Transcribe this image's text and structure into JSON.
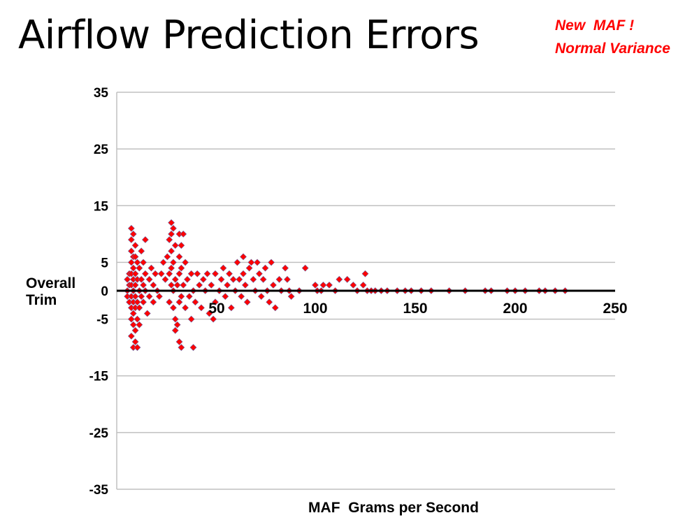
{
  "slide": {
    "title": "Airflow Prediction Errors",
    "annotation": [
      "New  MAF !",
      "Normal Variance"
    ]
  },
  "colors": {
    "marker": "#ff0000",
    "marker_edge": "#6a6aa8",
    "grid": "#c0c0c0",
    "zero_line": "#000000",
    "annotation": "#ff0000"
  },
  "chart_data": {
    "type": "scatter",
    "title": "Airflow Prediction Errors",
    "xlabel": "MAF  Grams per Second",
    "ylabel": "Overall Trim",
    "xlim": [
      0,
      250
    ],
    "ylim": [
      -35,
      35
    ],
    "xticks": [
      50,
      100,
      150,
      200,
      250
    ],
    "xtick_labels": [
      "50",
      "100",
      "150",
      "200",
      "250"
    ],
    "yticks": [
      35,
      25,
      15,
      5,
      0,
      -5,
      -15,
      -25,
      -35
    ],
    "ytick_labels": [
      "35",
      "25",
      "15",
      "5",
      "0",
      "-5",
      "-15",
      "-25",
      "-35"
    ],
    "grid": true,
    "marker": "diamond",
    "series": [
      {
        "name": "Overall Trim",
        "points": [
          [
            6,
            2
          ],
          [
            6,
            0
          ],
          [
            6,
            -1
          ],
          [
            7,
            3
          ],
          [
            7,
            1
          ],
          [
            7,
            -2
          ],
          [
            8,
            11
          ],
          [
            8,
            9
          ],
          [
            8,
            7
          ],
          [
            8,
            5
          ],
          [
            8,
            3
          ],
          [
            8,
            1
          ],
          [
            8,
            -1
          ],
          [
            8,
            -3
          ],
          [
            8,
            -5
          ],
          [
            8,
            -8
          ],
          [
            9,
            10
          ],
          [
            9,
            6
          ],
          [
            9,
            4
          ],
          [
            9,
            2
          ],
          [
            9,
            0
          ],
          [
            9,
            -2
          ],
          [
            9,
            -4
          ],
          [
            9,
            -6
          ],
          [
            9,
            -10
          ],
          [
            10,
            8
          ],
          [
            10,
            6
          ],
          [
            10,
            3
          ],
          [
            10,
            1
          ],
          [
            10,
            -1
          ],
          [
            10,
            -3
          ],
          [
            10,
            -7
          ],
          [
            10,
            -9
          ],
          [
            11,
            5
          ],
          [
            11,
            2
          ],
          [
            11,
            -2
          ],
          [
            11,
            -5
          ],
          [
            11,
            -10
          ],
          [
            12,
            4
          ],
          [
            12,
            0
          ],
          [
            12,
            -3
          ],
          [
            12,
            -6
          ],
          [
            13,
            7
          ],
          [
            13,
            2
          ],
          [
            13,
            -1
          ],
          [
            14,
            5
          ],
          [
            14,
            1
          ],
          [
            14,
            -2
          ],
          [
            15,
            9
          ],
          [
            15,
            3
          ],
          [
            15,
            0
          ],
          [
            16,
            -4
          ],
          [
            17,
            2
          ],
          [
            17,
            -1
          ],
          [
            18,
            4
          ],
          [
            19,
            1
          ],
          [
            19,
            -2
          ],
          [
            20,
            3
          ],
          [
            21,
            0
          ],
          [
            22,
            -1
          ],
          [
            23,
            3
          ],
          [
            24,
            5
          ],
          [
            25,
            2
          ],
          [
            26,
            6
          ],
          [
            27,
            9
          ],
          [
            27,
            3
          ],
          [
            27,
            -2
          ],
          [
            28,
            12
          ],
          [
            28,
            10
          ],
          [
            28,
            7
          ],
          [
            28,
            4
          ],
          [
            28,
            1
          ],
          [
            29,
            11
          ],
          [
            29,
            5
          ],
          [
            29,
            0
          ],
          [
            29,
            -3
          ],
          [
            30,
            8
          ],
          [
            30,
            2
          ],
          [
            30,
            -5
          ],
          [
            30,
            -7
          ],
          [
            31,
            -6
          ],
          [
            31,
            1
          ],
          [
            32,
            10
          ],
          [
            32,
            6
          ],
          [
            32,
            3
          ],
          [
            32,
            -2
          ],
          [
            32,
            -9
          ],
          [
            33,
            8
          ],
          [
            33,
            4
          ],
          [
            33,
            -1
          ],
          [
            33,
            -10
          ],
          [
            34,
            10
          ],
          [
            34,
            1
          ],
          [
            35,
            5
          ],
          [
            35,
            -3
          ],
          [
            36,
            2
          ],
          [
            37,
            -1
          ],
          [
            38,
            3
          ],
          [
            38,
            -5
          ],
          [
            39,
            0
          ],
          [
            39,
            -10
          ],
          [
            40,
            -2
          ],
          [
            41,
            3
          ],
          [
            42,
            1
          ],
          [
            43,
            -3
          ],
          [
            44,
            2
          ],
          [
            45,
            0
          ],
          [
            46,
            3
          ],
          [
            47,
            -4
          ],
          [
            48,
            1
          ],
          [
            49,
            -5
          ],
          [
            50,
            3
          ],
          [
            50,
            -2
          ],
          [
            52,
            0
          ],
          [
            53,
            2
          ],
          [
            54,
            4
          ],
          [
            55,
            -1
          ],
          [
            56,
            1
          ],
          [
            57,
            3
          ],
          [
            58,
            -3
          ],
          [
            59,
            2
          ],
          [
            60,
            0
          ],
          [
            61,
            5
          ],
          [
            62,
            2
          ],
          [
            63,
            -1
          ],
          [
            64,
            3
          ],
          [
            64,
            6
          ],
          [
            65,
            1
          ],
          [
            66,
            -2
          ],
          [
            67,
            4
          ],
          [
            68,
            5
          ],
          [
            69,
            2
          ],
          [
            70,
            0
          ],
          [
            71,
            5
          ],
          [
            72,
            3
          ],
          [
            73,
            -1
          ],
          [
            74,
            2
          ],
          [
            75,
            4
          ],
          [
            76,
            0
          ],
          [
            77,
            -2
          ],
          [
            78,
            5
          ],
          [
            79,
            1
          ],
          [
            80,
            -3
          ],
          [
            82,
            2
          ],
          [
            83,
            0
          ],
          [
            85,
            4
          ],
          [
            86,
            2
          ],
          [
            87,
            0
          ],
          [
            88,
            -1
          ],
          [
            92,
            0
          ],
          [
            95,
            4
          ],
          [
            100,
            1
          ],
          [
            101,
            0
          ],
          [
            103,
            0
          ],
          [
            104,
            1
          ],
          [
            107,
            1
          ],
          [
            110,
            0
          ],
          [
            112,
            2
          ],
          [
            116,
            2
          ],
          [
            119,
            1
          ],
          [
            121,
            0
          ],
          [
            124,
            1
          ],
          [
            125,
            3
          ],
          [
            126,
            0
          ],
          [
            128,
            0
          ],
          [
            130,
            0
          ],
          [
            133,
            0
          ],
          [
            136,
            0
          ],
          [
            141,
            0
          ],
          [
            145,
            0
          ],
          [
            148,
            0
          ],
          [
            153,
            0
          ],
          [
            158,
            0
          ],
          [
            167,
            0
          ],
          [
            175,
            0
          ],
          [
            185,
            0
          ],
          [
            188,
            0
          ],
          [
            196,
            0
          ],
          [
            200,
            0
          ],
          [
            205,
            0
          ],
          [
            212,
            0
          ],
          [
            215,
            0
          ],
          [
            220,
            0
          ],
          [
            225,
            0
          ]
        ]
      }
    ]
  }
}
